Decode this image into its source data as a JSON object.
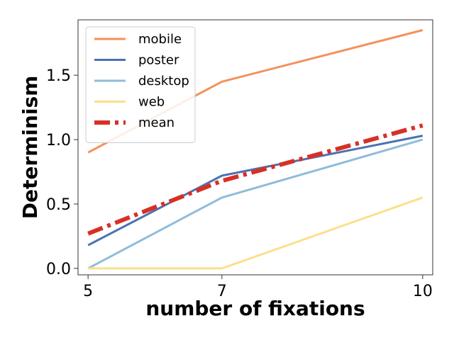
{
  "chart_data": {
    "type": "line",
    "xlabel": "number of fixations",
    "ylabel": "Determinism",
    "x": [
      5,
      7,
      10
    ],
    "x_ticks": [
      5,
      7,
      10
    ],
    "x_tick_labels": [
      "5",
      "7",
      "10"
    ],
    "xlim": [
      4.85,
      10.15
    ],
    "y_ticks": [
      0.0,
      0.5,
      1.0,
      1.5
    ],
    "y_tick_labels": [
      "0.0",
      "0.5",
      "1.0",
      "1.5"
    ],
    "ylim": [
      -0.05,
      1.93
    ],
    "grid": false,
    "legend_position": "top-left",
    "series": [
      {
        "name": "mobile",
        "values": [
          0.9,
          1.45,
          1.85
        ],
        "color": "#f4915a",
        "style": "solid"
      },
      {
        "name": "poster",
        "values": [
          0.18,
          0.72,
          1.03
        ],
        "color": "#4a72b0",
        "style": "solid"
      },
      {
        "name": "desktop",
        "values": [
          0.0,
          0.55,
          1.0
        ],
        "color": "#8fbcdb",
        "style": "solid"
      },
      {
        "name": "web",
        "values": [
          0.0,
          0.0,
          0.55
        ],
        "color": "#fbe08a",
        "style": "solid"
      },
      {
        "name": "mean",
        "values": [
          0.27,
          0.68,
          1.11
        ],
        "color": "#d73027",
        "style": "dashdot"
      }
    ]
  }
}
